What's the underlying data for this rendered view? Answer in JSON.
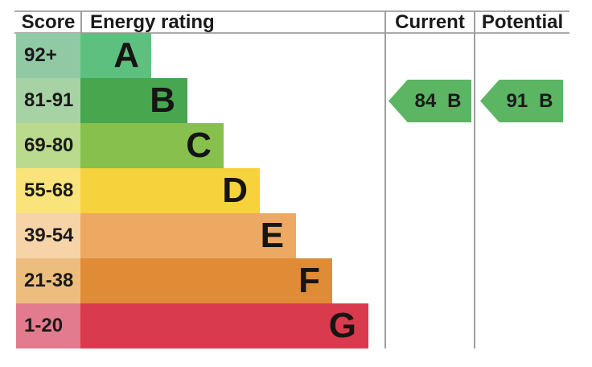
{
  "header": {
    "score": "Score",
    "energy_rating": "Energy rating",
    "current": "Current",
    "potential": "Potential"
  },
  "bands": [
    {
      "score": "92+",
      "letter": "A",
      "bar_color": "#5ec07f",
      "tint_color": "#92c9a5"
    },
    {
      "score": "81-91",
      "letter": "B",
      "bar_color": "#48a64f",
      "tint_color": "#a7d3a4"
    },
    {
      "score": "69-80",
      "letter": "C",
      "bar_color": "#87c04d",
      "tint_color": "#bada8e"
    },
    {
      "score": "55-68",
      "letter": "D",
      "bar_color": "#f6d23c",
      "tint_color": "#f9e37b"
    },
    {
      "score": "39-54",
      "letter": "E",
      "bar_color": "#eda961",
      "tint_color": "#f6d4a8"
    },
    {
      "score": "21-38",
      "letter": "F",
      "bar_color": "#e08b36",
      "tint_color": "#edbd7e"
    },
    {
      "score": "1-20",
      "letter": "G",
      "bar_color": "#da3a4d",
      "tint_color": "#e27b8e"
    }
  ],
  "current": {
    "value": "84",
    "letter": "B",
    "arrow_color": "#5bb563"
  },
  "potential": {
    "value": "91",
    "letter": "B",
    "arrow_color": "#5bb563"
  },
  "chart_data": {
    "type": "bar",
    "title": "Energy rating",
    "column_headers": [
      "Score",
      "Energy rating",
      "Current",
      "Potential"
    ],
    "categories": [
      "A",
      "B",
      "C",
      "D",
      "E",
      "F",
      "G"
    ],
    "score_ranges": [
      "92+",
      "81-91",
      "69-80",
      "55-68",
      "39-54",
      "21-38",
      "1-20"
    ],
    "relative_bar_lengths": [
      1,
      2,
      3,
      4,
      5,
      6,
      7
    ],
    "band_colors": [
      "#5ec07f",
      "#48a64f",
      "#87c04d",
      "#f6d23c",
      "#eda961",
      "#e08b36",
      "#da3a4d"
    ],
    "current": {
      "score": 84,
      "rating": "B"
    },
    "potential": {
      "score": 91,
      "rating": "B"
    },
    "legend_position": "none",
    "grid": false
  }
}
